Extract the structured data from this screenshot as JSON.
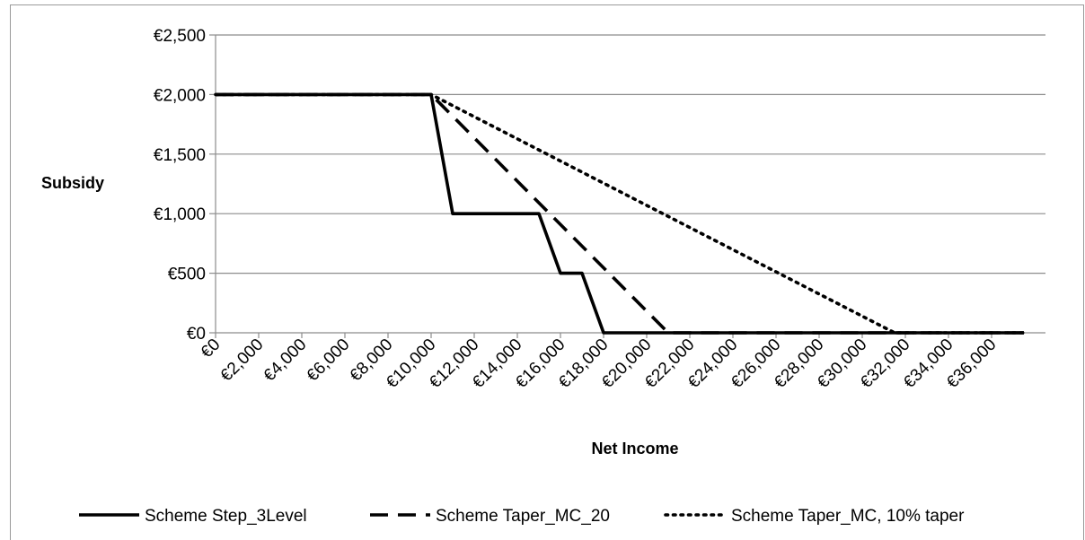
{
  "chart_data": {
    "type": "line",
    "xlabel": "Net Income",
    "ylabel": "Subsidy",
    "x_ticks": [
      "€0",
      "€2,000",
      "€4,000",
      "€6,000",
      "€8,000",
      "€10,000",
      "€12,000",
      "€14,000",
      "€16,000",
      "€18,000",
      "€20,000",
      "€22,000",
      "€24,000",
      "€26,000",
      "€28,000",
      "€30,000",
      "€32,000",
      "€34,000",
      "€36,000"
    ],
    "y_ticks": [
      "€0",
      "€500",
      "€1,000",
      "€1,500",
      "€2,000",
      "€2,500"
    ],
    "xlim": [
      0,
      38500
    ],
    "ylim": [
      0,
      2500
    ],
    "grid": "horizontal",
    "legend_position": "bottom",
    "series": [
      {
        "name": "Scheme Step_3Level",
        "style": "solid",
        "color": "#000000",
        "x": [
          0,
          10000,
          11000,
          15000,
          16000,
          17000,
          18000,
          37500
        ],
        "y": [
          2000,
          2000,
          1000,
          1000,
          500,
          500,
          0,
          0
        ]
      },
      {
        "name": "Scheme Taper_MC_20",
        "style": "dashed",
        "color": "#000000",
        "x": [
          0,
          10000,
          21000,
          37500
        ],
        "y": [
          2000,
          2000,
          0,
          0
        ]
      },
      {
        "name": "Scheme Taper_MC, 10% taper",
        "style": "dotted",
        "color": "#000000",
        "x": [
          0,
          10000,
          31500,
          37500
        ],
        "y": [
          2000,
          2000,
          0,
          0
        ]
      }
    ]
  }
}
